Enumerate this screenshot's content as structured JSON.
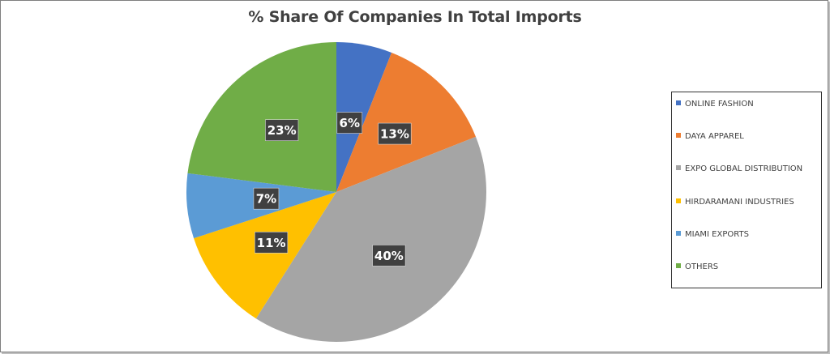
{
  "chart_data": {
    "type": "pie",
    "title": "% Share Of Companies In Total Imports",
    "categories": [
      "ONLINE FASHION",
      "DAYA APPAREL",
      "EXPO GLOBAL DISTRIBUTION",
      "HIRDARAMANI INDUSTRIES",
      "MIAMI EXPORTS",
      "OTHERS"
    ],
    "values": [
      6,
      13,
      40,
      11,
      7,
      23
    ],
    "labels": [
      "6%",
      "13%",
      "40%",
      "11%",
      "7%",
      "23%"
    ],
    "colors": [
      "#4472C4",
      "#ED7D31",
      "#A5A5A5",
      "#FFC000",
      "#5B9BD5",
      "#70AD47"
    ],
    "legend_position": "right"
  }
}
